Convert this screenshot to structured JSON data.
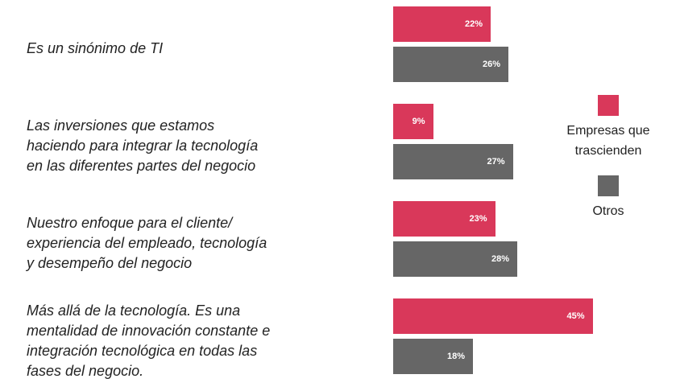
{
  "chart_data": {
    "type": "bar",
    "orientation": "horizontal",
    "categories": [
      "Es un sinónimo de TI",
      "Las inversiones que estamos\nhaciendo para integrar la tecnología\nen las diferentes partes del negocio",
      "Nuestro enfoque para el cliente/\nexperiencia del empleado, tecnología\ny desempeño del negocio",
      "Más allá de la tecnología. Es una\nmentalidad de innovación constante e\nintegración tecnológica en todas las\nfases del negocio."
    ],
    "series": [
      {
        "name": "Empresas que\ntrascienden",
        "color": "#d9385a",
        "values": [
          22,
          9,
          23,
          45
        ],
        "value_labels": [
          "22%",
          "9%",
          "23%",
          "45%"
        ]
      },
      {
        "name": "Otros",
        "color": "#666666",
        "values": [
          26,
          27,
          28,
          18
        ],
        "value_labels": [
          "26%",
          "27%",
          "28%",
          "18%"
        ]
      }
    ]
  }
}
